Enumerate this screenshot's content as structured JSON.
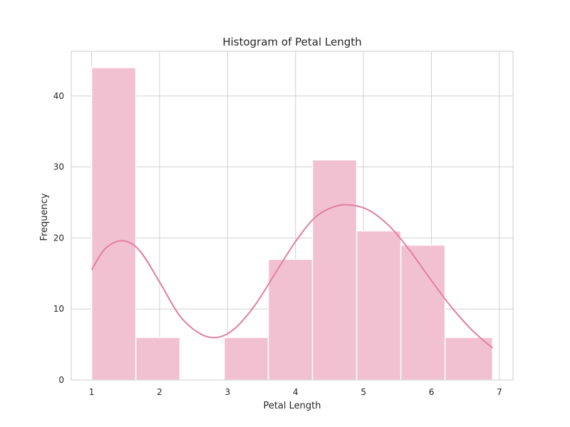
{
  "chart_data": {
    "type": "bar",
    "title": "Histogram of Petal Length",
    "xlabel": "Petal Length",
    "ylabel": "Frequency",
    "xlim": [
      0.7,
      7.2
    ],
    "ylim": [
      0,
      46.3
    ],
    "xticks": [
      1,
      2,
      3,
      4,
      5,
      6,
      7
    ],
    "yticks": [
      0,
      10,
      20,
      30,
      40
    ],
    "grid": true,
    "legend": "none",
    "colors": {
      "bar": "#f2c1d1",
      "bar_edge": "#ffffff",
      "kde": "#e0809e",
      "grid": "#d0d0d0",
      "frame": "#cccccc"
    },
    "bins": [
      {
        "x0": 1.0,
        "x1": 1.65,
        "count": 44
      },
      {
        "x0": 1.65,
        "x1": 2.3,
        "count": 6
      },
      {
        "x0": 2.3,
        "x1": 2.95,
        "count": 0
      },
      {
        "x0": 2.95,
        "x1": 3.6,
        "count": 6
      },
      {
        "x0": 3.6,
        "x1": 4.25,
        "count": 17
      },
      {
        "x0": 4.25,
        "x1": 4.9,
        "count": 31
      },
      {
        "x0": 4.9,
        "x1": 5.55,
        "count": 21
      },
      {
        "x0": 5.55,
        "x1": 6.2,
        "count": 19
      },
      {
        "x0": 6.2,
        "x1": 6.9,
        "count": 6
      }
    ],
    "kde": {
      "x": [
        1.0,
        1.2,
        1.45,
        1.7,
        2.0,
        2.3,
        2.6,
        2.85,
        3.1,
        3.4,
        3.7,
        4.0,
        4.3,
        4.6,
        4.85,
        5.1,
        5.4,
        5.7,
        6.0,
        6.3,
        6.6,
        6.9
      ],
      "y": [
        15.5,
        18.5,
        19.6,
        18.3,
        13.8,
        9.0,
        6.5,
        6.0,
        7.2,
        10.5,
        15.0,
        19.5,
        23.0,
        24.5,
        24.6,
        23.8,
        21.5,
        18.0,
        14.0,
        10.2,
        7.0,
        4.5
      ]
    }
  }
}
